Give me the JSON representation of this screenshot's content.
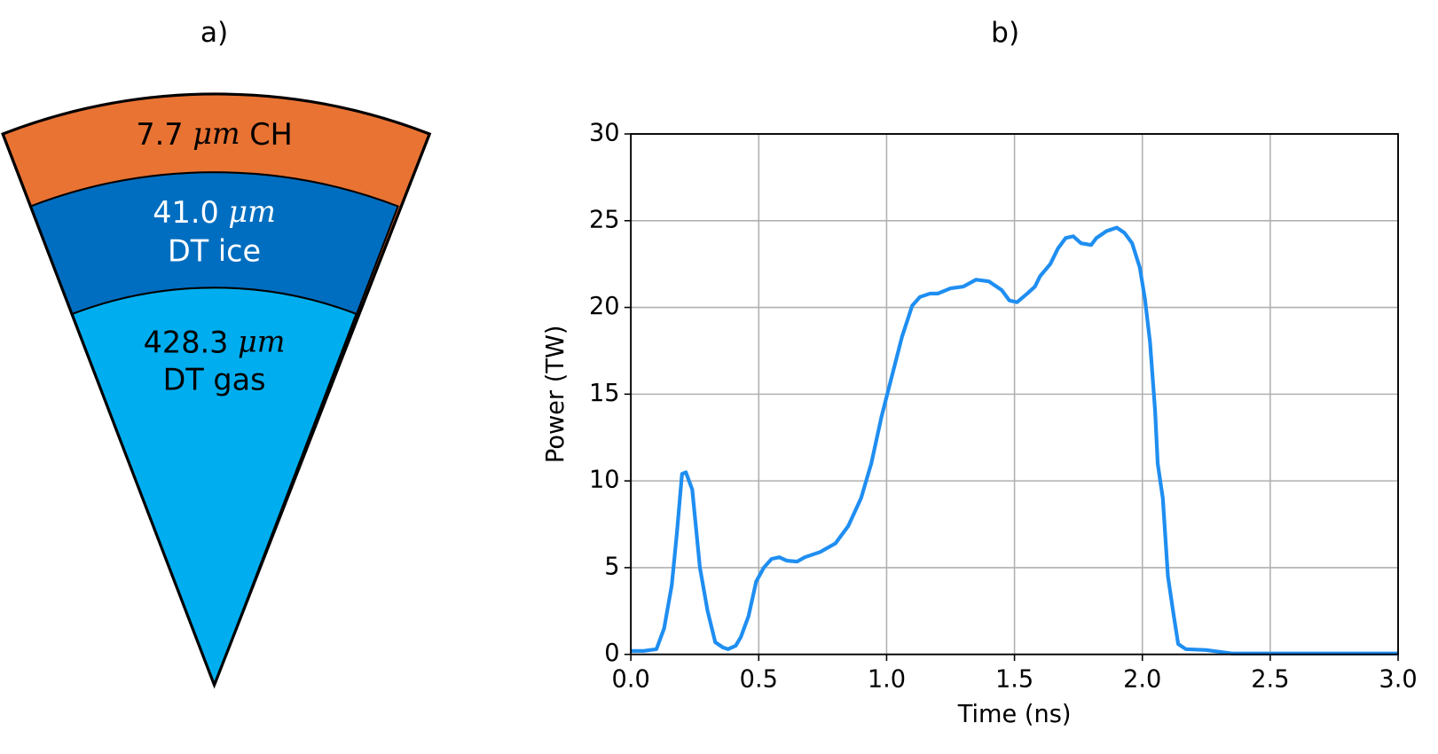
{
  "diagram": {
    "title": "a)",
    "layers": [
      {
        "value": "7.7",
        "unit": "μm",
        "name": "CH"
      },
      {
        "value": "41.0",
        "unit": "μm",
        "name": "DT ice"
      },
      {
        "value": "428.3",
        "unit": "μm",
        "name": "DT gas"
      }
    ]
  },
  "chart_data": {
    "type": "line",
    "title": "b)",
    "x_label": "Time (ns)",
    "y_label": "Power (TW)",
    "xlim": [
      0,
      3
    ],
    "ylim": [
      0,
      30
    ],
    "xticks": [
      {
        "value": 0,
        "label": "0.0"
      },
      0.5,
      {
        "value": 1,
        "label": "1.0"
      },
      1.5,
      {
        "value": 2,
        "label": "2.0"
      },
      2.5,
      {
        "value": 3,
        "label": "3.0"
      }
    ],
    "yticks": [
      0,
      5,
      10,
      15,
      20,
      25,
      30
    ],
    "grid": true,
    "x": [
      0,
      0.05,
      0.1,
      0.13,
      0.16,
      0.18,
      0.2,
      0.215,
      0.24,
      0.27,
      0.3,
      0.33,
      0.36,
      0.38,
      0.41,
      0.43,
      0.46,
      0.49,
      0.52,
      0.55,
      0.58,
      0.61,
      0.65,
      0.68,
      0.74,
      0.8,
      0.85,
      0.9,
      0.94,
      0.98,
      1.02,
      1.06,
      1.1,
      1.13,
      1.17,
      1.2,
      1.25,
      1.3,
      1.35,
      1.4,
      1.45,
      1.48,
      1.51,
      1.55,
      1.58,
      1.6,
      1.64,
      1.67,
      1.7,
      1.73,
      1.76,
      1.8,
      1.82,
      1.86,
      1.9,
      1.93,
      1.96,
      1.99,
      2.01,
      2.03,
      2.05,
      2.06,
      2.08,
      2.1,
      2.12,
      2.14,
      2.17,
      2.25,
      2.35,
      2.5,
      3.0
    ],
    "series": [
      {
        "color": "#1f8ef1",
        "values": [
          0.2,
          0.2,
          0.3,
          1.5,
          4,
          7,
          10.4,
          10.5,
          9.5,
          5,
          2.5,
          0.7,
          0.4,
          0.3,
          0.5,
          1,
          2.2,
          4.2,
          5,
          5.5,
          5.6,
          5.4,
          5.35,
          5.6,
          5.9,
          6.4,
          7.4,
          9,
          11,
          13.7,
          16,
          18.3,
          20.1,
          20.6,
          20.8,
          20.8,
          21.1,
          21.2,
          21.6,
          21.5,
          21,
          20.4,
          20.3,
          20.8,
          21.2,
          21.8,
          22.5,
          23.4,
          24,
          24.1,
          23.7,
          23.6,
          24,
          24.4,
          24.6,
          24.3,
          23.7,
          22.3,
          20.5,
          18,
          14,
          11,
          9,
          4.5,
          2.5,
          0.6,
          0.3,
          0.25,
          0.05,
          0.05,
          0.05
        ]
      }
    ]
  }
}
